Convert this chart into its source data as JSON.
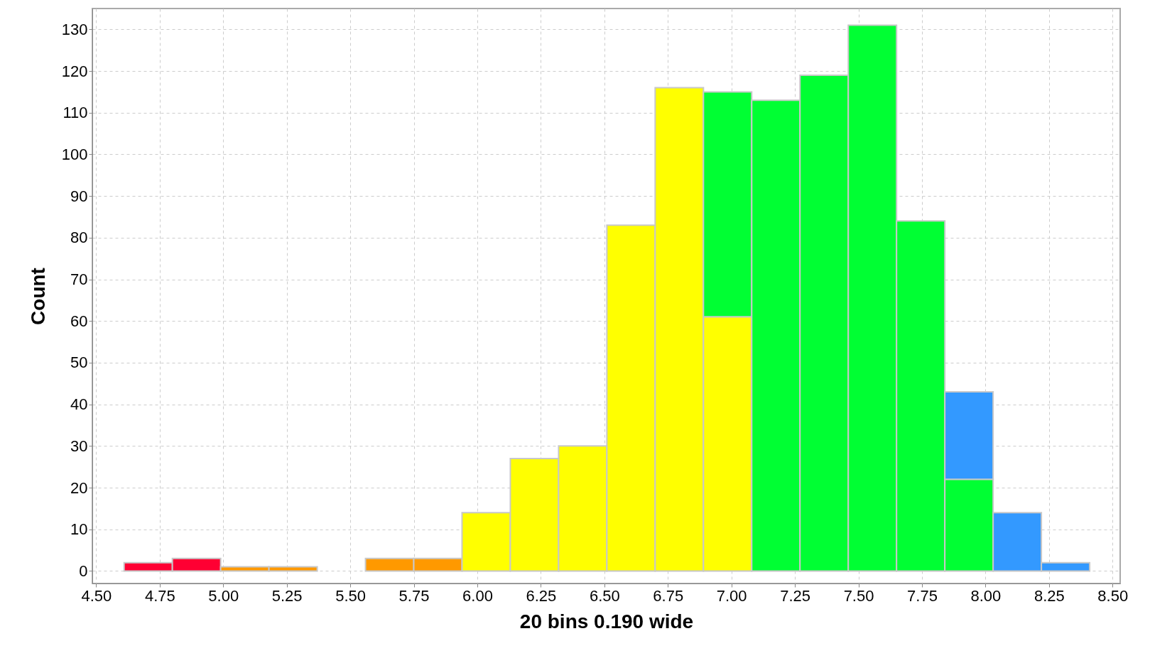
{
  "chart_data": {
    "type": "bar",
    "xlabel": "20 bins 0.190 wide",
    "ylabel": "Count",
    "x": [
      4.705,
      4.895,
      5.085,
      5.275,
      5.465,
      5.655,
      5.845,
      6.035,
      6.225,
      6.415,
      6.605,
      6.795,
      6.985,
      7.175,
      7.365,
      7.555,
      7.745,
      7.935,
      8.125,
      8.315
    ],
    "stacked": true,
    "series": [
      {
        "color": "#ff0033",
        "values": [
          2,
          3,
          0,
          0,
          0,
          0,
          0,
          0,
          0,
          0,
          0,
          0,
          0,
          0,
          0,
          0,
          0,
          0,
          0,
          0
        ]
      },
      {
        "color": "#ff9900",
        "values": [
          0,
          0,
          1,
          1,
          0,
          3,
          3,
          0,
          0,
          0,
          0,
          0,
          0,
          0,
          0,
          0,
          0,
          0,
          0,
          0
        ]
      },
      {
        "color": "#ffff00",
        "values": [
          0,
          0,
          0,
          0,
          0,
          0,
          0,
          14,
          27,
          30,
          83,
          116,
          61,
          0,
          0,
          0,
          0,
          0,
          0,
          0
        ]
      },
      {
        "color": "#00ff33",
        "values": [
          0,
          0,
          0,
          0,
          0,
          0,
          0,
          0,
          0,
          0,
          0,
          0,
          54,
          113,
          119,
          131,
          84,
          22,
          0,
          0
        ]
      },
      {
        "color": "#3399ff",
        "values": [
          0,
          0,
          0,
          0,
          0,
          0,
          0,
          0,
          0,
          0,
          0,
          0,
          0,
          0,
          0,
          0,
          0,
          21,
          14,
          2
        ]
      }
    ],
    "xlim": [
      4.485,
      8.53
    ],
    "xticks": [
      {
        "value": 4.5,
        "label": "4.50"
      },
      {
        "value": 4.75,
        "label": "4.75"
      },
      {
        "value": 5,
        "label": "5.00"
      },
      {
        "value": 5.25,
        "label": "5.25"
      },
      {
        "value": 5.5,
        "label": "5.50"
      },
      {
        "value": 5.75,
        "label": "5.75"
      },
      {
        "value": 6,
        "label": "6.00"
      },
      {
        "value": 6.25,
        "label": "6.25"
      },
      {
        "value": 6.5,
        "label": "6.50"
      },
      {
        "value": 6.75,
        "label": "6.75"
      },
      {
        "value": 7,
        "label": "7.00"
      },
      {
        "value": 7.25,
        "label": "7.25"
      },
      {
        "value": 7.5,
        "label": "7.50"
      },
      {
        "value": 7.75,
        "label": "7.75"
      },
      {
        "value": 8,
        "label": "8.00"
      },
      {
        "value": 8.25,
        "label": "8.25"
      },
      {
        "value": 8.5,
        "label": "8.50"
      }
    ],
    "ylim": [
      -3,
      135
    ],
    "yticks": [
      0,
      10,
      20,
      30,
      40,
      50,
      60,
      70,
      80,
      90,
      100,
      110,
      120,
      130
    ],
    "grid": true
  }
}
